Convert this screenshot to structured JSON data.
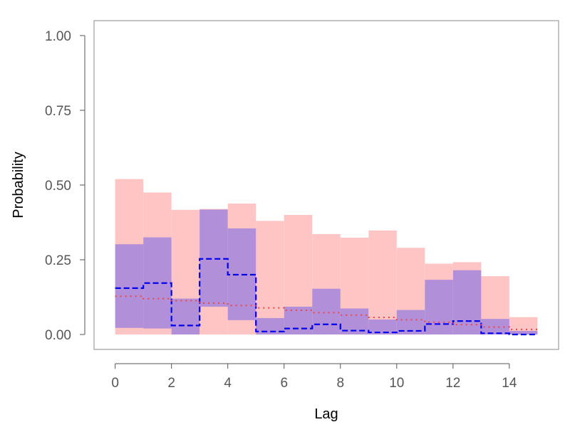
{
  "chart_data": {
    "type": "area",
    "xlabel": "Lag",
    "ylabel": "Probability",
    "xlim": [
      -0.75,
      15.75
    ],
    "ylim": [
      -0.05,
      1.05
    ],
    "x_ticks": [
      0,
      2,
      4,
      6,
      8,
      10,
      12,
      14
    ],
    "x_tick_labels": [
      "0",
      "2",
      "4",
      "6",
      "8",
      "10",
      "12",
      "14"
    ],
    "y_ticks": [
      0,
      0.25,
      0.5,
      0.75,
      1.0
    ],
    "y_tick_labels": [
      "0.00",
      "0.25",
      "0.50",
      "0.75",
      "1.00"
    ],
    "lags": [
      0,
      1,
      2,
      3,
      4,
      5,
      6,
      7,
      8,
      9,
      10,
      11,
      12,
      13,
      14
    ],
    "grid": false,
    "legend": "none",
    "series": [
      {
        "kind": "band",
        "color": "#ffc5c5",
        "lower": [
          0.0,
          0.0,
          0.0,
          0.0,
          0.0,
          0.0,
          0.0,
          0.0,
          0.0,
          0.0,
          0.0,
          0.0,
          0.0,
          0.0,
          0.0
        ],
        "upper": [
          0.52,
          0.475,
          0.417,
          0.42,
          0.438,
          0.38,
          0.4,
          0.336,
          0.324,
          0.348,
          0.29,
          0.237,
          0.242,
          0.195,
          0.058
        ]
      },
      {
        "kind": "band",
        "color": "#b290d9",
        "lower": [
          0.022,
          0.02,
          0.0,
          0.093,
          0.048,
          0.0,
          0.0,
          0.0,
          0.0,
          0.0,
          0.0,
          0.0,
          0.0,
          0.0,
          0.0
        ],
        "upper": [
          0.302,
          0.325,
          0.12,
          0.418,
          0.355,
          0.055,
          0.093,
          0.153,
          0.087,
          0.05,
          0.082,
          0.183,
          0.215,
          0.052,
          0.012
        ]
      },
      {
        "kind": "step",
        "style": "dashed",
        "color": "#0000ee",
        "values": [
          0.155,
          0.172,
          0.03,
          0.253,
          0.2,
          0.01,
          0.02,
          0.034,
          0.013,
          0.007,
          0.012,
          0.035,
          0.045,
          0.004,
          0.0
        ]
      },
      {
        "kind": "step",
        "style": "dotted",
        "color": "#ee4444",
        "values": [
          0.128,
          0.12,
          0.113,
          0.105,
          0.097,
          0.089,
          0.081,
          0.073,
          0.065,
          0.057,
          0.049,
          0.041,
          0.033,
          0.025,
          0.017
        ]
      }
    ]
  }
}
